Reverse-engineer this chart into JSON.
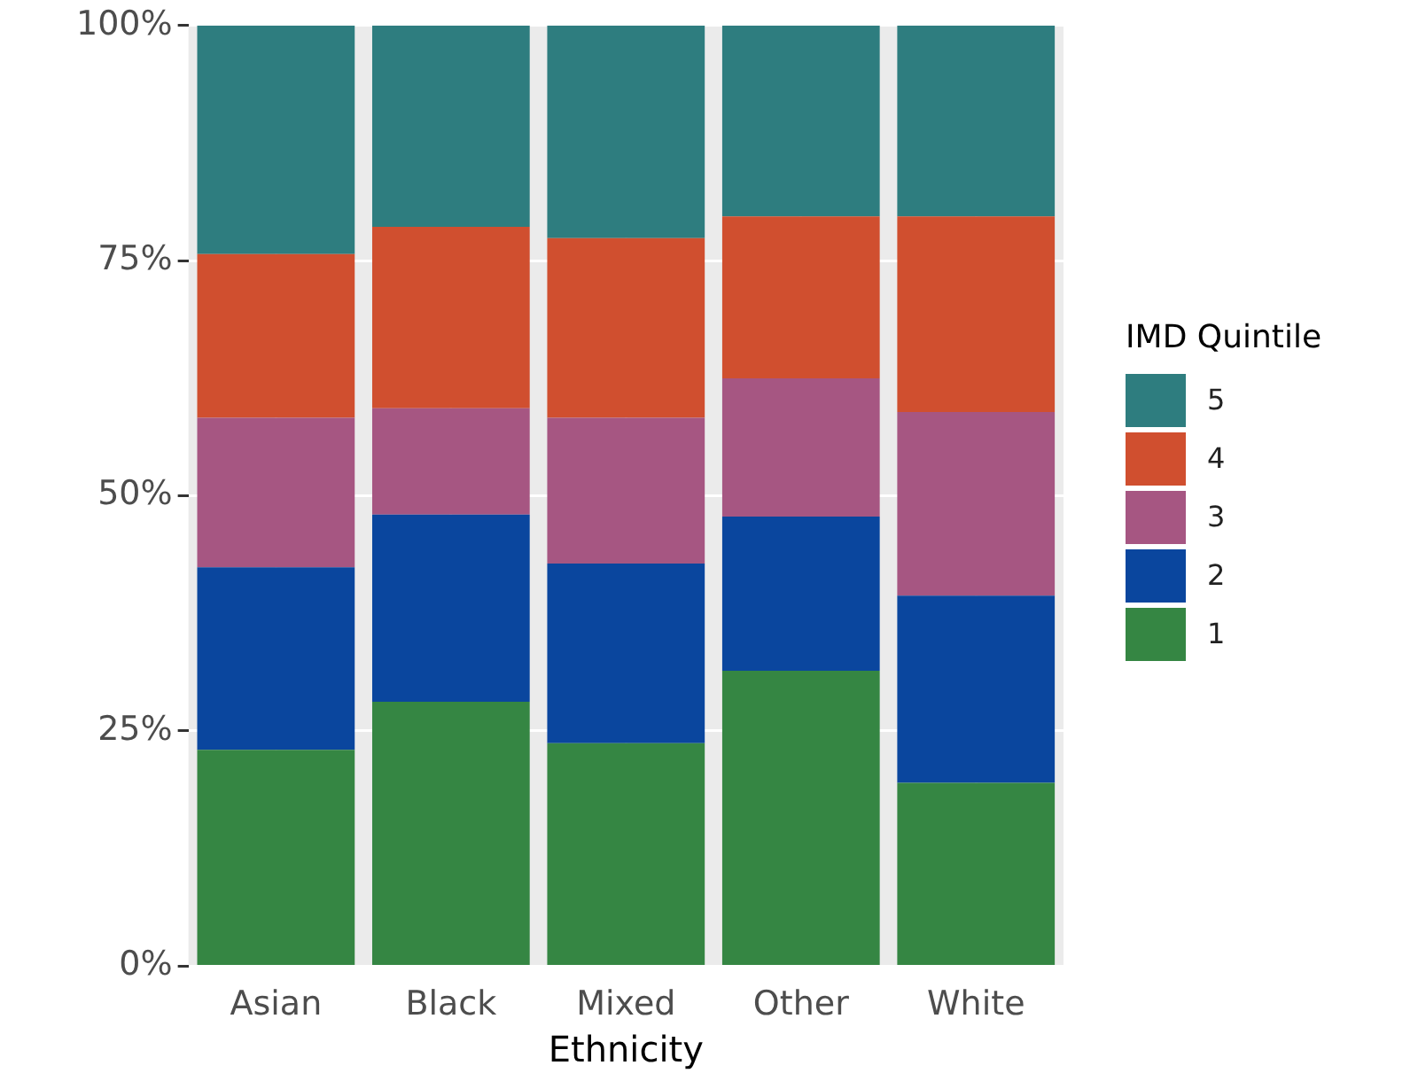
{
  "chart_data": {
    "type": "bar",
    "stacked": true,
    "xlabel": "Ethnicity",
    "legend_title": "IMD Quintile",
    "legend": "right",
    "grid": true,
    "categories": [
      "Asian",
      "Black",
      "Mixed",
      "Other",
      "White"
    ],
    "ylim": [
      0,
      100
    ],
    "yticks": [
      {
        "value": 0,
        "label": "0%"
      },
      {
        "value": 25,
        "label": "25%"
      },
      {
        "value": 50,
        "label": "50%"
      },
      {
        "value": 75,
        "label": "75%"
      },
      {
        "value": 100,
        "label": "100%"
      }
    ],
    "series": [
      {
        "name": "1",
        "color": "#358643",
        "values": [
          23.0,
          28.1,
          23.7,
          31.4,
          19.5
        ]
      },
      {
        "name": "2",
        "color": "#0a469e",
        "values": [
          19.4,
          19.9,
          19.1,
          16.4,
          19.9
        ]
      },
      {
        "name": "3",
        "color": "#a65682",
        "values": [
          15.9,
          11.3,
          15.5,
          14.7,
          19.5
        ]
      },
      {
        "name": "4",
        "color": "#d04f2f",
        "values": [
          17.4,
          19.3,
          19.1,
          17.2,
          20.8
        ]
      },
      {
        "name": "5",
        "color": "#2e7d7f",
        "values": [
          24.3,
          21.4,
          22.6,
          20.3,
          20.3
        ]
      }
    ]
  }
}
